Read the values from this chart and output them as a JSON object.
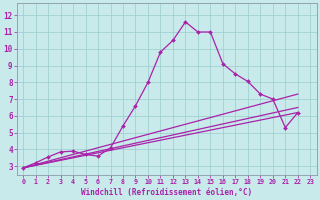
{
  "xlabel": "Windchill (Refroidissement éolien,°C)",
  "bg_color": "#c8eaea",
  "line_color": "#aa22aa",
  "grid_color": "#99cccc",
  "spine_color": "#8899aa",
  "xlim": [
    -0.5,
    23.5
  ],
  "ylim": [
    2.5,
    12.7
  ],
  "xticks": [
    0,
    1,
    2,
    3,
    4,
    5,
    6,
    7,
    8,
    9,
    10,
    11,
    12,
    13,
    14,
    15,
    16,
    17,
    18,
    19,
    20,
    21,
    22,
    23
  ],
  "yticks": [
    3,
    4,
    5,
    6,
    7,
    8,
    9,
    10,
    11,
    12
  ],
  "lines": [
    {
      "x": [
        0,
        1,
        2,
        3,
        4,
        5,
        6,
        7,
        8,
        9,
        10,
        11,
        12,
        13,
        14,
        15,
        16,
        17,
        18,
        19,
        20,
        21,
        22
      ],
      "y": [
        2.9,
        3.2,
        3.55,
        3.85,
        3.9,
        3.7,
        3.6,
        4.1,
        5.4,
        6.6,
        8.0,
        9.8,
        10.5,
        11.6,
        11.0,
        11.0,
        9.1,
        8.5,
        8.05,
        7.3,
        7.0,
        5.3,
        6.2
      ],
      "marker": true
    },
    {
      "x": [
        0,
        22
      ],
      "y": [
        2.9,
        7.3
      ],
      "marker": false
    },
    {
      "x": [
        0,
        22
      ],
      "y": [
        2.9,
        6.5
      ],
      "marker": false
    },
    {
      "x": [
        0,
        22
      ],
      "y": [
        2.9,
        6.2
      ],
      "marker": false
    }
  ]
}
